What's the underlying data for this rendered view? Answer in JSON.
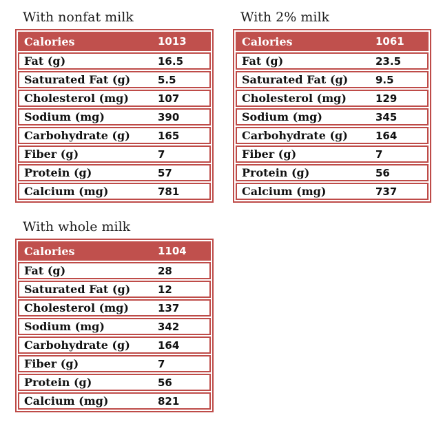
{
  "page": {
    "background": "#ffffff"
  },
  "colors": {
    "accent_red": "#c0504d",
    "border_red": "#be4b48",
    "header_text": "#ffffff",
    "body_text": "#111111"
  },
  "tables": [
    {
      "title": "With nonfat milk",
      "header": {
        "label": "Calories",
        "value": "1013"
      },
      "rows": [
        {
          "label": "Fat (g)",
          "value": "16.5"
        },
        {
          "label": "Saturated Fat (g)",
          "value": "5.5"
        },
        {
          "label": "Cholesterol (mg)",
          "value": "107"
        },
        {
          "label": "Sodium (mg)",
          "value": "390"
        },
        {
          "label": "Carbohydrate (g)",
          "value": "165"
        },
        {
          "label": "Fiber (g)",
          "value": "7"
        },
        {
          "label": "Protein (g)",
          "value": "57"
        },
        {
          "label": "Calcium (mg)",
          "value": "781"
        }
      ]
    },
    {
      "title": "With 2% milk",
      "header": {
        "label": "Calories",
        "value": "1061"
      },
      "rows": [
        {
          "label": "Fat (g)",
          "value": "23.5"
        },
        {
          "label": "Saturated Fat (g)",
          "value": "9.5"
        },
        {
          "label": "Cholesterol (mg)",
          "value": "129"
        },
        {
          "label": "Sodium (mg)",
          "value": "345"
        },
        {
          "label": "Carbohydrate (g)",
          "value": "164"
        },
        {
          "label": "Fiber (g)",
          "value": "7"
        },
        {
          "label": "Protein (g)",
          "value": "56"
        },
        {
          "label": "Calcium (mg)",
          "value": "737"
        }
      ]
    },
    {
      "title": "With whole milk",
      "header": {
        "label": "Calories",
        "value": "1104"
      },
      "rows": [
        {
          "label": "Fat (g)",
          "value": "28"
        },
        {
          "label": "Saturated Fat (g)",
          "value": "12"
        },
        {
          "label": "Cholesterol (mg)",
          "value": "137"
        },
        {
          "label": "Sodium (mg)",
          "value": "342"
        },
        {
          "label": "Carbohydrate (g)",
          "value": "164"
        },
        {
          "label": "Fiber (g)",
          "value": "7"
        },
        {
          "label": "Protein (g)",
          "value": "56"
        },
        {
          "label": "Calcium (mg)",
          "value": "821"
        }
      ]
    }
  ]
}
